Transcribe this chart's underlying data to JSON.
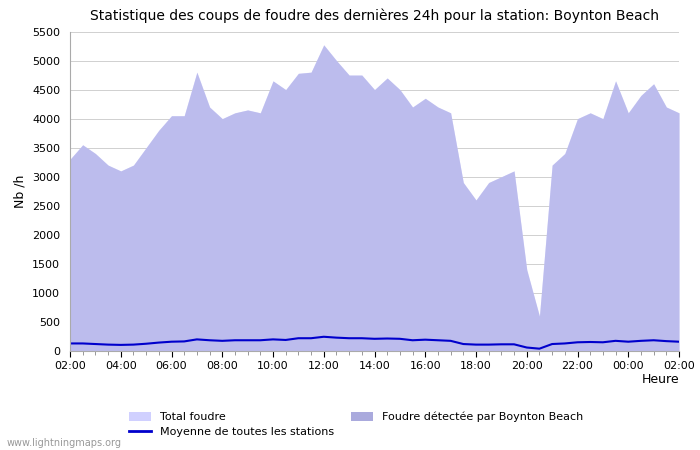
{
  "title": "Statistique des coups de foudre des dernières 24h pour la station: Boynton Beach",
  "xlabel": "Heure",
  "ylabel": "Nb /h",
  "watermark": "www.lightningmaps.org",
  "ylim": [
    0,
    5500
  ],
  "yticks": [
    0,
    500,
    1000,
    1500,
    2000,
    2500,
    3000,
    3500,
    4000,
    4500,
    5000,
    5500
  ],
  "xtick_labels": [
    "02:00",
    "04:00",
    "06:00",
    "08:00",
    "10:00",
    "12:00",
    "14:00",
    "16:00",
    "18:00",
    "20:00",
    "22:00",
    "00:00",
    "02:00"
  ],
  "color_total": "#d0d0ff",
  "color_local": "#aaaadd",
  "color_moyenne": "#0000cc",
  "bg_color": "#ffffff",
  "legend_total": "Total foudre",
  "legend_local": "Foudre détectée par Boynton Beach",
  "legend_moyenne": "Moyenne de toutes les stations",
  "hours": [
    2.0,
    2.5,
    3.0,
    3.5,
    4.0,
    4.5,
    5.0,
    5.5,
    6.0,
    6.5,
    7.0,
    7.5,
    8.0,
    8.5,
    9.0,
    9.5,
    10.0,
    10.5,
    11.0,
    11.5,
    12.0,
    12.5,
    13.0,
    13.5,
    14.0,
    14.5,
    15.0,
    15.5,
    16.0,
    16.5,
    17.0,
    17.5,
    18.0,
    18.5,
    19.0,
    19.5,
    20.0,
    20.5,
    21.0,
    21.5,
    22.0,
    22.5,
    23.0,
    23.5,
    24.0,
    24.5,
    25.0,
    25.5,
    26.0
  ],
  "total_foudre": [
    3300,
    3550,
    3400,
    3200,
    3100,
    3200,
    3500,
    3800,
    4050,
    4050,
    4800,
    4200,
    4000,
    4100,
    4150,
    4100,
    4650,
    4500,
    4780,
    4800,
    5270,
    5000,
    4750,
    4750,
    4500,
    4700,
    4500,
    4200,
    4350,
    4200,
    4100,
    2900,
    2600,
    2900,
    3000,
    3100,
    1400,
    600,
    3200,
    3400,
    4000,
    4100,
    4000,
    4650,
    4100,
    4400,
    4600,
    4200,
    4100
  ],
  "local_foudre": [
    3300,
    3550,
    3400,
    3200,
    3100,
    3200,
    3500,
    3800,
    4050,
    4050,
    4800,
    4200,
    4000,
    4100,
    4150,
    4100,
    4650,
    4500,
    4780,
    4800,
    5270,
    5000,
    4750,
    4750,
    4500,
    4700,
    4500,
    4200,
    4350,
    4200,
    4100,
    2900,
    2600,
    2900,
    3000,
    3100,
    1400,
    600,
    3200,
    3400,
    4000,
    4100,
    4000,
    4650,
    4100,
    4400,
    4600,
    4200,
    4100
  ],
  "moyenne": [
    130,
    130,
    120,
    110,
    105,
    110,
    125,
    145,
    160,
    165,
    200,
    185,
    175,
    185,
    185,
    185,
    200,
    190,
    220,
    220,
    245,
    230,
    220,
    220,
    210,
    215,
    210,
    185,
    195,
    185,
    175,
    120,
    110,
    110,
    115,
    115,
    60,
    40,
    120,
    130,
    150,
    155,
    150,
    175,
    160,
    175,
    185,
    170,
    160
  ]
}
